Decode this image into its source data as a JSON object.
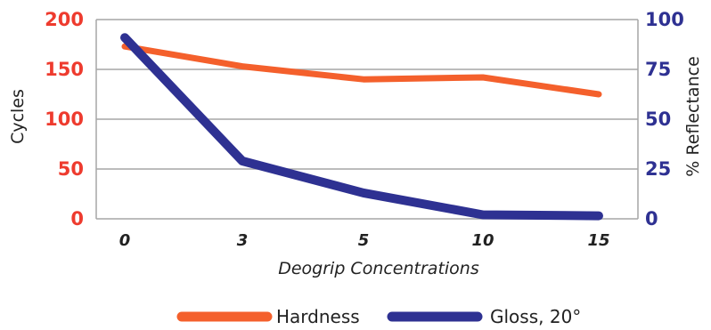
{
  "colors": {
    "hardness": "#f4602c",
    "gloss": "#2e3192",
    "grid": "#a6a6a6",
    "axis_left": "#ee3b2e",
    "axis_right": "#2e3192"
  },
  "chart_data": {
    "type": "line",
    "categories": [
      "0",
      "3",
      "5",
      "10",
      "15"
    ],
    "xlabel": "Deogrip Concentrations",
    "ylabel_left": "Cycles",
    "ylabel_right": "% Reflectance",
    "ylim_left": [
      0,
      200
    ],
    "ylim_right": [
      0,
      100
    ],
    "yticks_left": [
      "0",
      "50",
      "100",
      "150",
      "200"
    ],
    "yticks_right": [
      "0",
      "25",
      "50",
      "75",
      "100"
    ],
    "grid": true,
    "legend_position": "bottom-center",
    "series": [
      {
        "name": "Hardness",
        "axis": "left",
        "values": [
          173,
          153,
          140,
          142,
          125
        ]
      },
      {
        "name": "Gloss, 20°",
        "axis": "right",
        "values": [
          91,
          29,
          13,
          2,
          1.5
        ]
      }
    ]
  }
}
